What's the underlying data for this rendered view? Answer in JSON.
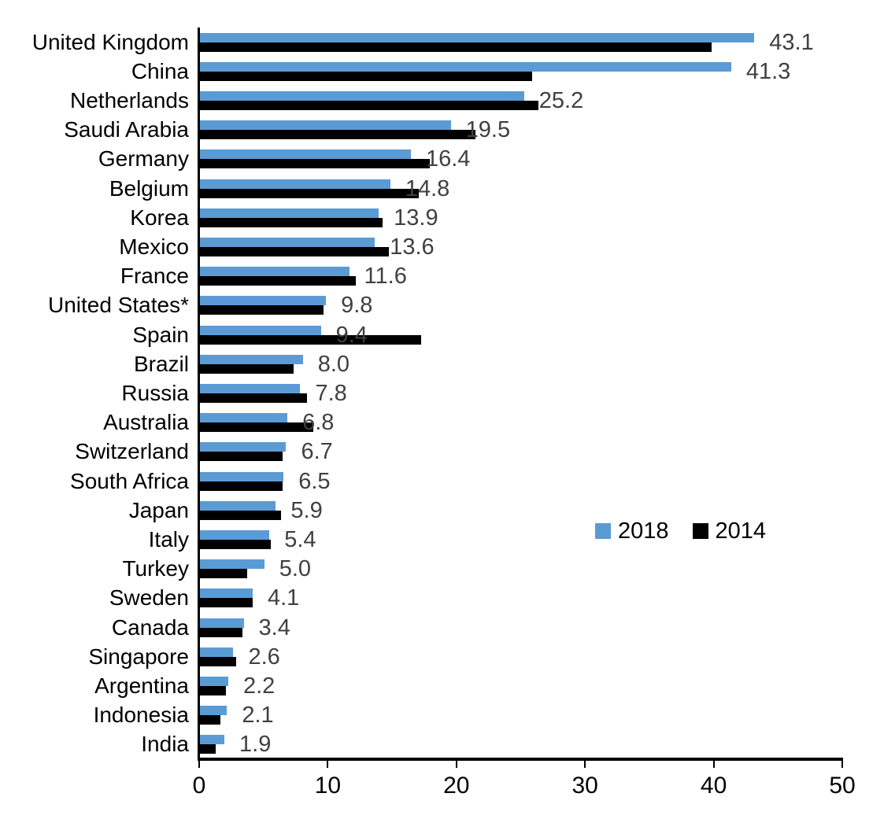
{
  "chart_data": {
    "type": "bar",
    "orientation": "horizontal",
    "title": "",
    "xlabel": "",
    "ylabel": "",
    "grid": false,
    "xlim": [
      0,
      50
    ],
    "xticks": [
      "0",
      "10",
      "20",
      "30",
      "40",
      "50"
    ],
    "legend_position": "middle-right",
    "categories": [
      "United Kingdom",
      "China",
      "Netherlands",
      "Saudi Arabia",
      "Germany",
      "Belgium",
      "Korea",
      "Mexico",
      "France",
      "United States*",
      "Spain",
      "Brazil",
      "Russia",
      "Australia",
      "Switzerland",
      "South Africa",
      "Japan",
      "Italy",
      "Turkey",
      "Sweden",
      "Canada",
      "Singapore",
      "Argentina",
      "Indonesia",
      "India"
    ],
    "series": [
      {
        "name": "2018",
        "color": "#5B9BD5",
        "values": [
          43.1,
          41.3,
          25.2,
          19.5,
          16.4,
          14.8,
          13.9,
          13.6,
          11.6,
          9.8,
          9.4,
          8.0,
          7.8,
          6.8,
          6.7,
          6.5,
          5.9,
          5.4,
          5.0,
          4.1,
          3.4,
          2.6,
          2.2,
          2.1,
          1.9
        ],
        "data_labels": [
          "43.1",
          "41.3",
          "25.2",
          "19.5",
          "16.4",
          "14.8",
          "13.9",
          "13.6",
          "11.6",
          "9.8",
          "9.4",
          "8.0",
          "7.8",
          "6.8",
          "6.7",
          "6.5",
          "5.9",
          "5.4",
          "5.0",
          "4.1",
          "3.4",
          "2.6",
          "2.2",
          "2.1",
          "1.9"
        ]
      },
      {
        "name": "2014",
        "color": "#000000",
        "values": [
          39.8,
          25.8,
          26.3,
          21.4,
          17.9,
          17.0,
          14.2,
          14.7,
          12.1,
          9.6,
          17.2,
          7.3,
          8.3,
          8.8,
          6.4,
          6.4,
          6.3,
          5.5,
          3.7,
          4.1,
          3.3,
          2.8,
          2.0,
          1.6,
          1.2
        ]
      }
    ],
    "legend": [
      {
        "label": "2018",
        "color": "#5B9BD5"
      },
      {
        "label": "2014",
        "color": "#000000"
      }
    ],
    "value_label_color": "#404040",
    "axis_color": "#000000"
  }
}
